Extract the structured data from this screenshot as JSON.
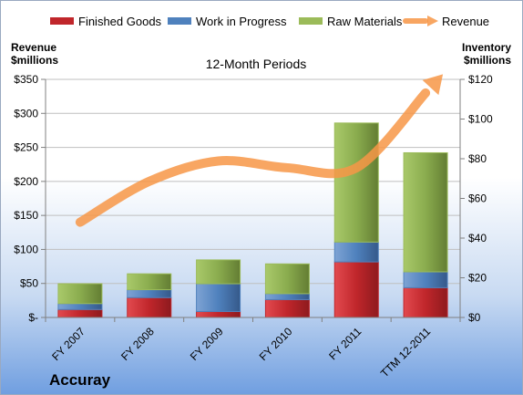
{
  "chart_data": {
    "type": "bar",
    "title": "12-Month Periods",
    "company": "Accuray",
    "stacked": true,
    "categories": [
      "FY 2007",
      "FY 2008",
      "FY 2009",
      "FY 2010",
      "FY 2011",
      "TTM 12-2011"
    ],
    "series": [
      {
        "name": "Finished Goods",
        "axis": "right",
        "color": "#c0262b",
        "values": [
          4,
          10,
          3,
          9,
          28,
          15
        ]
      },
      {
        "name": "Work in Progress",
        "axis": "right",
        "color": "#4f81bd",
        "values": [
          3,
          4,
          14,
          3,
          10,
          8
        ]
      },
      {
        "name": "Raw Materials",
        "axis": "right",
        "color": "#9bbb59",
        "values": [
          10,
          8,
          12,
          15,
          60,
          60
        ]
      },
      {
        "name": "Revenue",
        "axis": "left",
        "type": "line",
        "color": "#f79646",
        "values": [
          140,
          200,
          230,
          220,
          220,
          330
        ]
      }
    ],
    "left_axis": {
      "title_line1": "Revenue",
      "title_line2": "$millions",
      "range": [
        0,
        350
      ],
      "ticks": [
        0,
        50,
        100,
        150,
        200,
        250,
        300,
        350
      ],
      "tick_labels": [
        "$-",
        "$50",
        "$100",
        "$150",
        "$200",
        "$250",
        "$300",
        "$350"
      ]
    },
    "right_axis": {
      "title_line1": "Inventory",
      "title_line2": "$millions",
      "range": [
        0,
        120
      ],
      "ticks": [
        0,
        20,
        40,
        60,
        80,
        100,
        120
      ],
      "tick_labels": [
        "$0",
        "$20",
        "$40",
        "$60",
        "$80",
        "$100",
        "$120"
      ]
    },
    "grid": true,
    "legend_position": "top"
  }
}
